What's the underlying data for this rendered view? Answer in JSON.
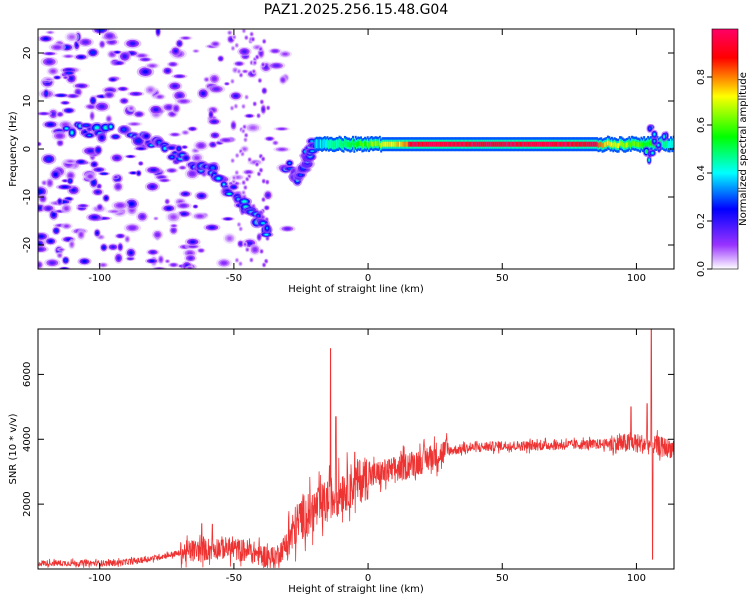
{
  "title": "PAZ1.2025.256.15.48.G04",
  "chart_data": [
    {
      "type": "heatmap",
      "xlabel": "Height of straight line (km)",
      "ylabel": "Frequency (Hz)",
      "xlim": [
        -123,
        114
      ],
      "ylim": [
        -25,
        25
      ],
      "xticks": [
        -100,
        -50,
        0,
        50,
        100
      ],
      "yticks": [
        -20,
        -10,
        0,
        10,
        20
      ],
      "colorbar": {
        "label": "Normalized spectral amplitude",
        "range": [
          0,
          1
        ],
        "ticks": [
          0.0,
          0.2,
          0.4,
          0.6,
          0.8
        ],
        "tick_labels": [
          "0.0",
          "0.2",
          "0.4",
          "0.6",
          "0.8"
        ],
        "colormap": [
          "#ffffff",
          "#9933ff",
          "#0000ff",
          "#00ffff",
          "#00ff00",
          "#ffff00",
          "#ff0000",
          "#ff0066"
        ]
      },
      "features": {
        "signal_track": {
          "x_range": [
            -20,
            114
          ],
          "frequency_hz": 1,
          "peak_amplitude": 0.95,
          "peak_x_range": [
            15,
            85
          ]
        },
        "descending_branch": {
          "points": [
            [
              -113,
              4
            ],
            [
              -95,
              3.5
            ],
            [
              -80,
              1.5
            ],
            [
              -70,
              -1
            ],
            [
              -60,
              -4
            ],
            [
              -50,
              -9
            ],
            [
              -42,
              -14
            ],
            [
              -36,
              -18
            ]
          ],
          "amplitude": 0.4
        },
        "secondary_branch": {
          "points": [
            [
              -30,
              -3
            ],
            [
              -25,
              -6
            ],
            [
              -22,
              -1
            ],
            [
              -18,
              2
            ]
          ],
          "amplitude": 0.4
        },
        "noise_region_x": [
          -123,
          -30
        ]
      }
    },
    {
      "type": "line",
      "xlabel": "Height of straight line (km)",
      "ylabel": "SNR (10 * v/v)",
      "xlim": [
        -123,
        114
      ],
      "ylim": [
        0,
        7400
      ],
      "xticks": [
        -100,
        -50,
        0,
        50,
        100
      ],
      "yticks": [
        2000,
        4000,
        6000
      ],
      "series": [
        {
          "color": "#ee3333",
          "envelope": [
            [
              -123,
              180
            ],
            [
              -95,
              180
            ],
            [
              -85,
              260
            ],
            [
              -75,
              420
            ],
            [
              -65,
              560
            ],
            [
              -55,
              660
            ],
            [
              -45,
              560
            ],
            [
              -35,
              320
            ],
            [
              -30,
              800
            ],
            [
              -25,
              1600
            ],
            [
              -18,
              1900
            ],
            [
              -10,
              2400
            ],
            [
              -5,
              2650
            ],
            [
              0,
              2850
            ],
            [
              10,
              3050
            ],
            [
              20,
              3350
            ],
            [
              30,
              3650
            ],
            [
              40,
              3750
            ],
            [
              50,
              3800
            ],
            [
              60,
              3800
            ],
            [
              70,
              3820
            ],
            [
              80,
              3840
            ],
            [
              90,
              3860
            ],
            [
              100,
              3880
            ],
            [
              108,
              3800
            ],
            [
              114,
              3700
            ]
          ],
          "spikes": [
            [
              -62,
              1400
            ],
            [
              -58,
              1380
            ],
            [
              -14,
              6800
            ],
            [
              -12,
              4700
            ],
            [
              -5,
              3600
            ],
            [
              98,
              5000
            ],
            [
              104,
              5100
            ],
            [
              105.5,
              7400
            ],
            [
              106,
              300
            ]
          ]
        }
      ]
    }
  ]
}
